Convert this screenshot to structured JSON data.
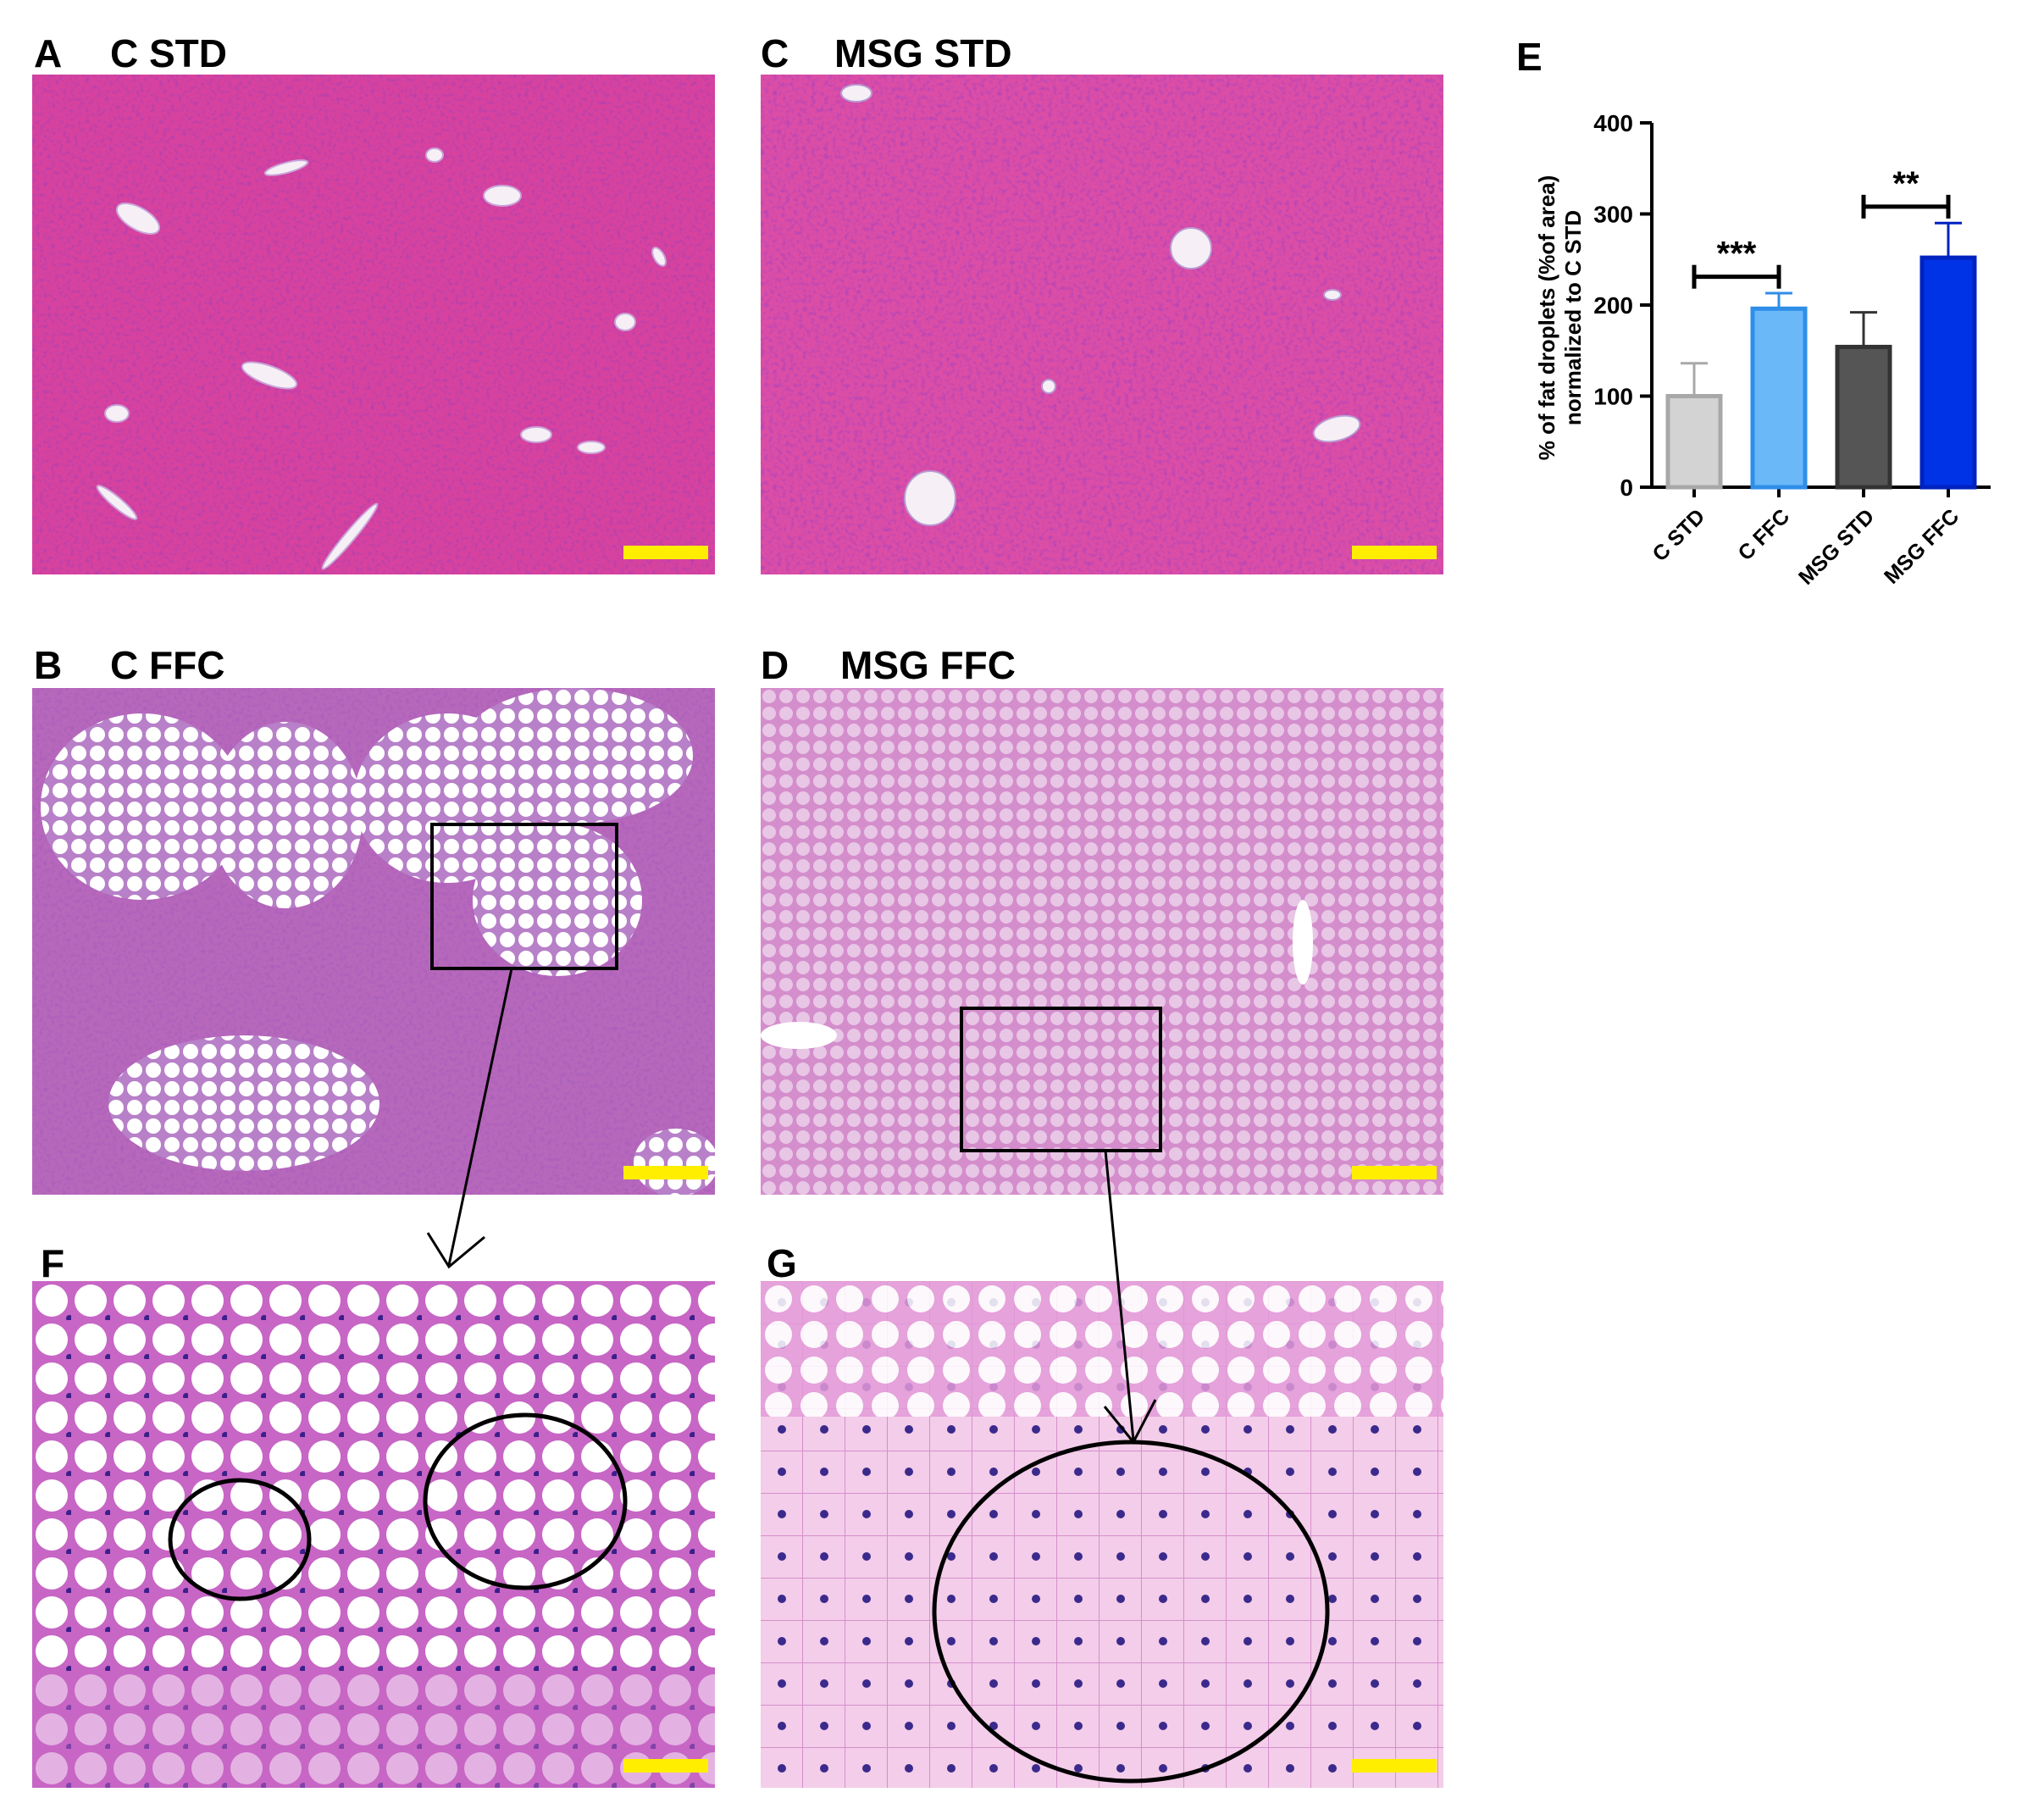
{
  "panels": {
    "A": {
      "letter": "A",
      "title": "C STD"
    },
    "B": {
      "letter": "B",
      "title": "C FFC"
    },
    "C": {
      "letter": "C",
      "title": "MSG STD"
    },
    "D": {
      "letter": "D",
      "title": "MSG FFC"
    },
    "E": {
      "letter": "E"
    },
    "F": {
      "letter": "F"
    },
    "G": {
      "letter": "G"
    }
  },
  "colors": {
    "tissue_std": "#d8429e",
    "tissue_ffc": "#c96cc4",
    "tissue_zoom": "#dd7ad4",
    "scalebar": "#ffee00"
  },
  "chart_data": {
    "type": "bar",
    "categories": [
      "C STD",
      "C FFC",
      "MSG STD",
      "MSG FFC"
    ],
    "values": [
      100,
      196,
      154,
      252
    ],
    "errors": [
      36,
      17,
      38,
      38
    ],
    "colors": [
      "#d3d3d3",
      "#6ab8f7",
      "#555555",
      "#0033e6"
    ],
    "edge_colors": [
      "#a8a8a8",
      "#2f8ee8",
      "#333333",
      "#0022c0"
    ],
    "ylabel_line1": "% of fat droplets (%of area)",
    "ylabel_line2": "normalized to C STD",
    "ylim": [
      0,
      400
    ],
    "yticks": [
      "0",
      "100",
      "200",
      "300",
      "400"
    ],
    "significance": [
      {
        "from": 0,
        "to": 1,
        "label": "***"
      },
      {
        "from": 2,
        "to": 3,
        "label": "**"
      }
    ]
  }
}
